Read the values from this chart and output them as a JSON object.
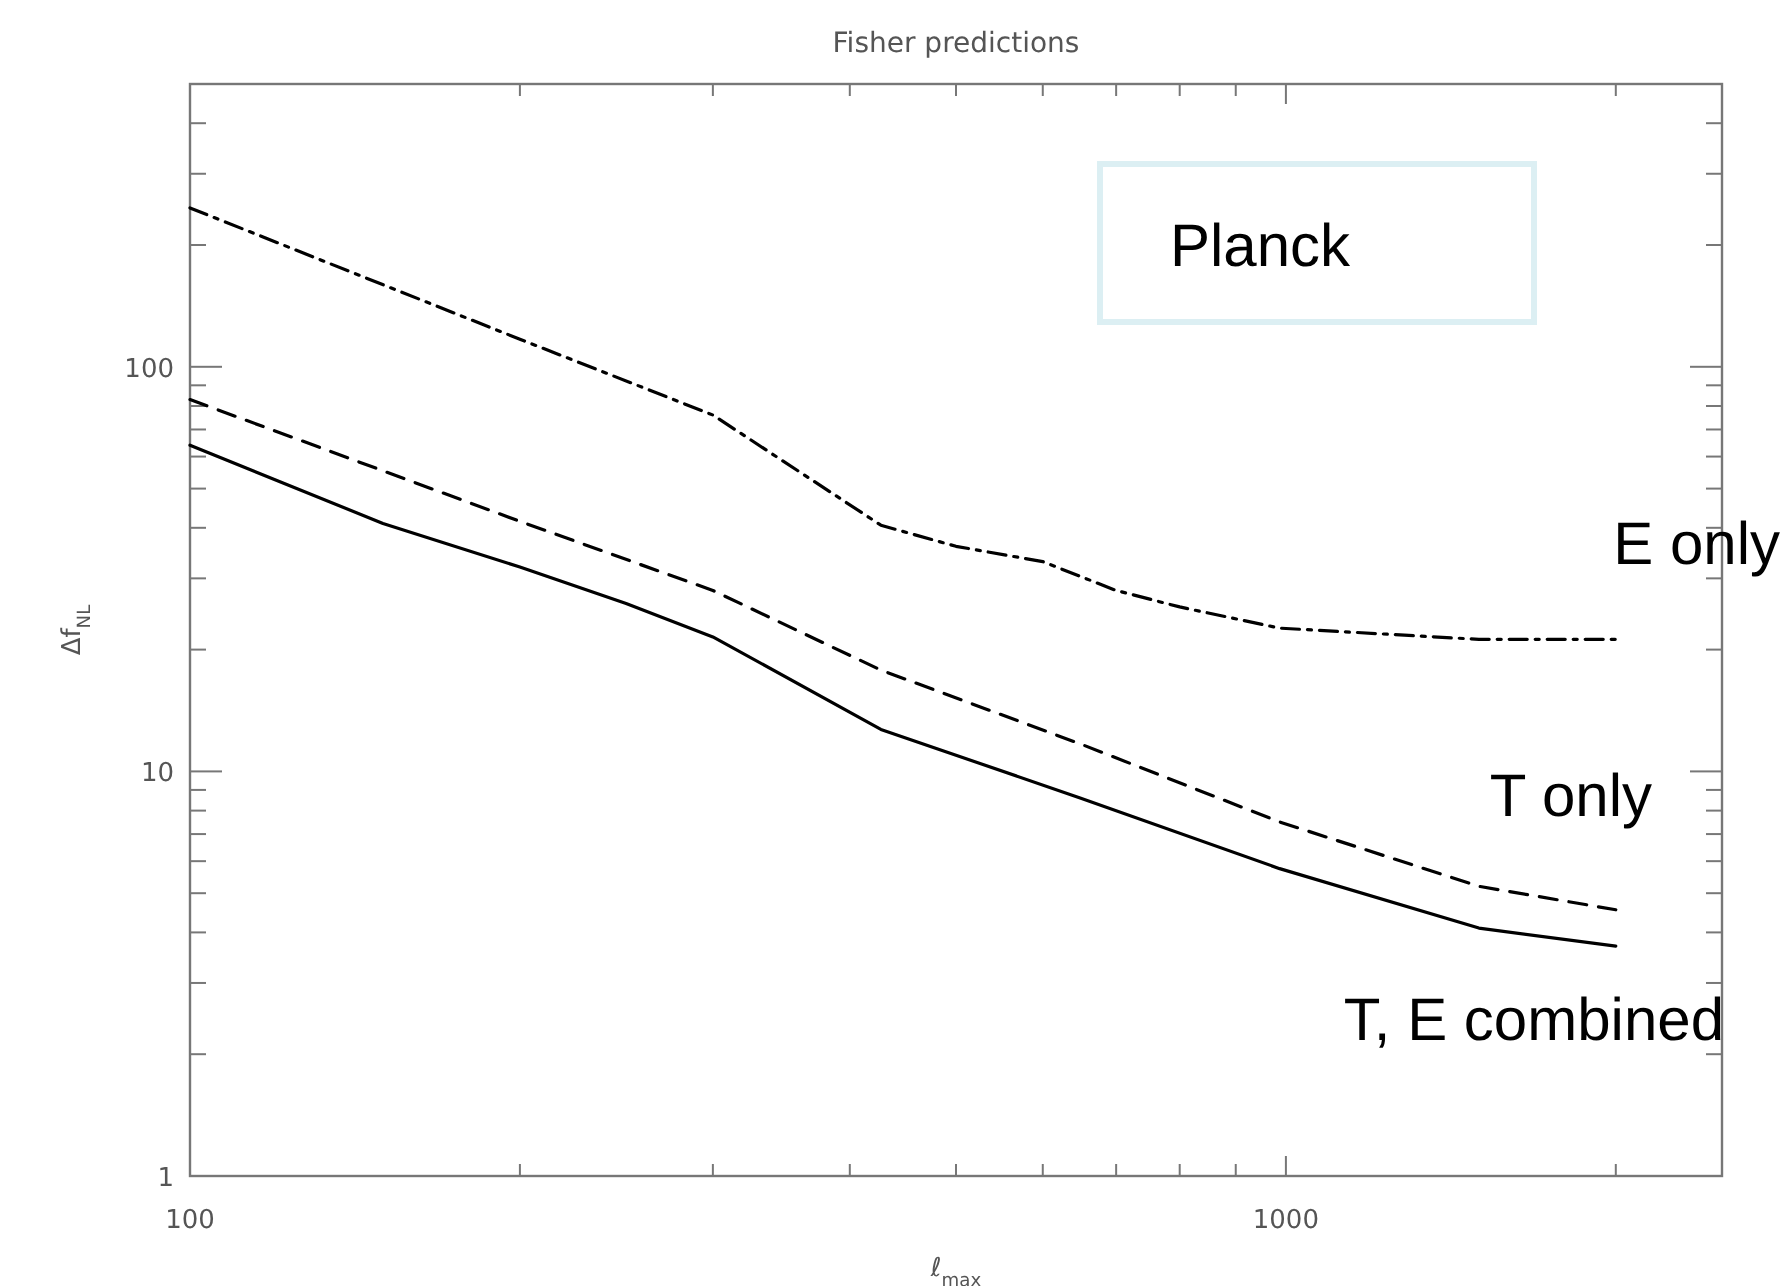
{
  "chart_data": {
    "type": "line",
    "title": "Fisher predictions",
    "xlabel": "ℓ$_{max}$",
    "ylabel": "Δf$_{NL}$",
    "log": "xy",
    "xlim": [
      100,
      2500
    ],
    "ylim": [
      1,
      500
    ],
    "xticks": [
      100,
      {
        "value": 200,
        "label": null
      },
      {
        "value": 300,
        "label": null
      },
      {
        "value": 400,
        "label": null
      },
      {
        "value": 500,
        "label": null
      },
      {
        "value": 600,
        "label": null
      },
      {
        "value": 700,
        "label": null
      },
      {
        "value": 800,
        "label": null
      },
      {
        "value": 900,
        "label": null
      },
      1000,
      {
        "value": 2000,
        "label": null
      }
    ],
    "yticks": [
      1,
      {
        "value": 2,
        "label": null
      },
      {
        "value": 3,
        "label": null
      },
      {
        "value": 4,
        "label": null
      },
      {
        "value": 5,
        "label": null
      },
      {
        "value": 6,
        "label": null
      },
      {
        "value": 7,
        "label": null
      },
      {
        "value": 8,
        "label": null
      },
      {
        "value": 9,
        "label": null
      },
      10,
      {
        "value": 20,
        "label": null
      },
      {
        "value": 30,
        "label": null
      },
      {
        "value": 40,
        "label": null
      },
      {
        "value": 50,
        "label": null
      },
      {
        "value": 60,
        "label": null
      },
      {
        "value": 70,
        "label": null
      },
      {
        "value": 80,
        "label": null
      },
      {
        "value": 90,
        "label": null
      },
      100,
      {
        "value": 200,
        "label": null
      },
      {
        "value": 300,
        "label": null
      },
      {
        "value": 400,
        "label": null
      },
      {
        "value": 500,
        "label": null
      }
    ],
    "grid": false,
    "legend": false,
    "marker": "none",
    "annotations": [
      "Planck"
    ],
    "series": [
      {
        "name": "T, E combined",
        "color": "#000000",
        "line_style": "solid",
        "x": [
          100,
          150,
          200,
          250,
          300,
          427,
          649,
          987,
          1500,
          2000
        ],
        "values": [
          64,
          41,
          32,
          26,
          21.5,
          12.7,
          8.6,
          5.75,
          4.1,
          3.7
        ]
      },
      {
        "name": "T only",
        "color": "#000000",
        "line_style": "dashed",
        "x": [
          100,
          200,
          300,
          427,
          649,
          987,
          1500,
          2000
        ],
        "values": [
          83,
          41.5,
          28,
          17.8,
          11.7,
          7.5,
          5.2,
          4.55
        ]
      },
      {
        "name": "E only",
        "color": "#000000",
        "line_style": "dashdot",
        "x": [
          100,
          200,
          300,
          427,
          500,
          600,
          700,
          800,
          987,
          1500,
          2000
        ],
        "values": [
          247,
          117,
          76,
          40.6,
          36,
          33,
          28,
          25.5,
          22.6,
          21.2,
          21.2
        ]
      }
    ]
  }
}
